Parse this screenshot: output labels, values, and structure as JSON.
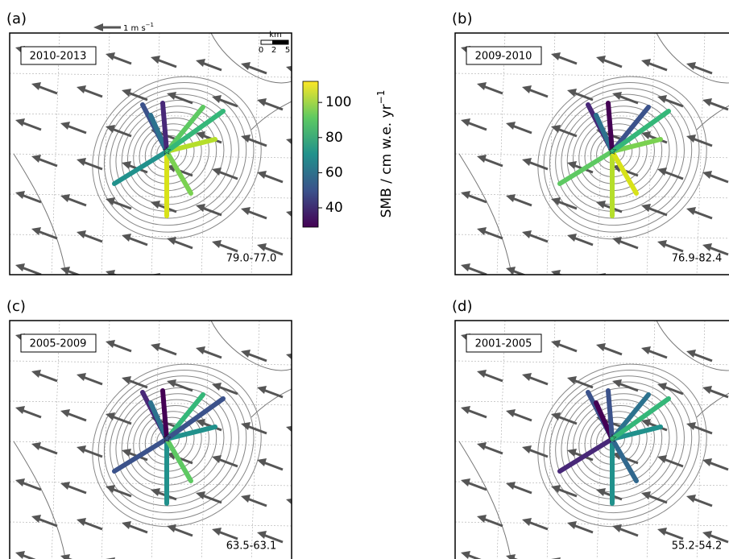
{
  "panels": [
    {
      "label": "(a)",
      "period": "2010-2013",
      "range": "79.0-77.0"
    },
    {
      "label": "(b)",
      "period": "2009-2010",
      "range": "76.9-82.4"
    },
    {
      "label": "(c)",
      "period": "2005-2009",
      "range": "63.5-63.1"
    },
    {
      "label": "(d)",
      "period": "2001-2005",
      "range": "55.2-54.2"
    }
  ],
  "wind_scale": {
    "text": "1 m s",
    "sup": "−1"
  },
  "distance_scale": {
    "unit": "km",
    "labels": [
      "0",
      "2",
      "5"
    ]
  },
  "colorbar": {
    "label": "SMB / cm w.e. yr",
    "sup": "−1",
    "lim": [
      29,
      112
    ],
    "ticks": [
      40,
      60,
      80,
      100
    ]
  }
}
